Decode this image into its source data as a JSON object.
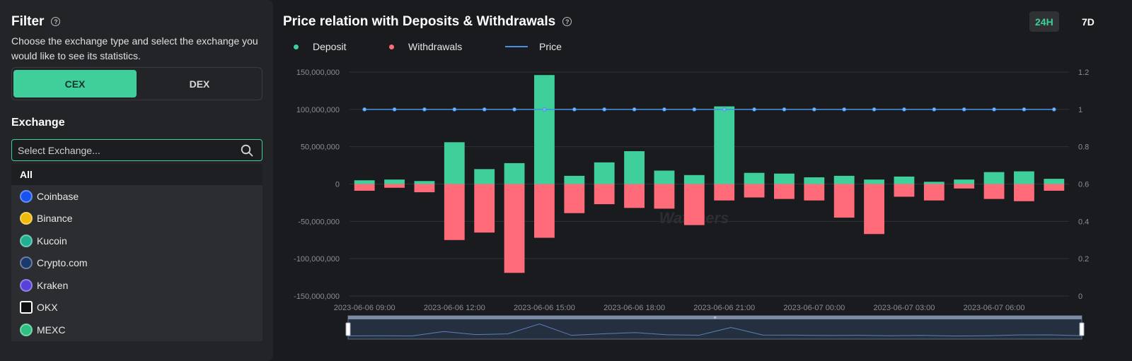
{
  "filter": {
    "title": "Filter",
    "description": "Choose the exchange type and select the exchange you would like to see its statistics.",
    "types": [
      {
        "label": "CEX",
        "active": true
      },
      {
        "label": "DEX",
        "active": false
      }
    ]
  },
  "exchange": {
    "title": "Exchange",
    "search_placeholder": "Select Exchange...",
    "all_label": "All",
    "items": [
      {
        "label": "Coinbase",
        "color": "#1652f0",
        "icon": "coinbase-logo"
      },
      {
        "label": "Binance",
        "color": "#f0b90b",
        "icon": "binance-logo"
      },
      {
        "label": "Kucoin",
        "color": "#23af91",
        "icon": "kucoin-logo"
      },
      {
        "label": "Crypto.com",
        "color": "#1a3a6e",
        "icon": "cryptocom-logo"
      },
      {
        "label": "Kraken",
        "color": "#5741d9",
        "icon": "kraken-logo"
      },
      {
        "label": "OKX",
        "color": "#ffffff",
        "icon": "okx-logo"
      },
      {
        "label": "MEXC",
        "color": "#2fc081",
        "icon": "mexc-logo"
      }
    ]
  },
  "chart": {
    "title": "Price relation with Deposits & Withdrawals",
    "range_buttons": [
      {
        "label": "24H",
        "active": true
      },
      {
        "label": "7D",
        "active": false
      }
    ],
    "watermark": "Watchers",
    "colors": {
      "deposit": "#3ecf9a",
      "withdrawals": "#ff6b78",
      "price": "#4a90e2",
      "grid": "#303236",
      "axis_text": "#8a8d93"
    }
  },
  "chart_data": {
    "type": "bar",
    "x": [
      "2023-06-06 09:00",
      "2023-06-06 10:00",
      "2023-06-06 11:00",
      "2023-06-06 12:00",
      "2023-06-06 13:00",
      "2023-06-06 14:00",
      "2023-06-06 15:00",
      "2023-06-06 16:00",
      "2023-06-06 17:00",
      "2023-06-06 18:00",
      "2023-06-06 19:00",
      "2023-06-06 20:00",
      "2023-06-06 21:00",
      "2023-06-06 22:00",
      "2023-06-06 23:00",
      "2023-06-07 00:00",
      "2023-06-07 01:00",
      "2023-06-07 02:00",
      "2023-06-07 03:00",
      "2023-06-07 04:00",
      "2023-06-07 05:00",
      "2023-06-07 06:00",
      "2023-06-07 07:00",
      "2023-06-07 08:00"
    ],
    "x_tick_labels": [
      "2023-06-06 09:00",
      "2023-06-06 12:00",
      "2023-06-06 15:00",
      "2023-06-06 18:00",
      "2023-06-06 21:00",
      "2023-06-07 00:00",
      "2023-06-07 03:00",
      "2023-06-07 06:00"
    ],
    "series": [
      {
        "name": "Deposit",
        "type": "bar",
        "values": [
          5000000,
          6000000,
          4000000,
          56000000,
          20000000,
          28000000,
          146000000,
          11000000,
          29000000,
          44000000,
          18000000,
          12000000,
          104000000,
          15000000,
          14000000,
          9000000,
          11000000,
          6000000,
          10000000,
          3000000,
          6000000,
          16000000,
          17000000,
          7000000
        ]
      },
      {
        "name": "Withdrawals",
        "type": "bar",
        "values": [
          -9000000,
          -5000000,
          -11000000,
          -75000000,
          -65000000,
          -119000000,
          -72000000,
          -39000000,
          -27000000,
          -32000000,
          -33000000,
          -55000000,
          -22000000,
          -18000000,
          -20000000,
          -22000000,
          -45000000,
          -67000000,
          -17000000,
          -22000000,
          -6000000,
          -20000000,
          -23000000,
          -9000000
        ]
      },
      {
        "name": "Price",
        "type": "line",
        "axis": "right",
        "values": [
          1,
          1,
          1,
          1,
          1,
          1,
          1,
          1,
          1,
          1,
          1,
          1,
          1,
          1,
          1,
          1,
          1,
          1,
          1,
          1,
          1,
          1,
          1,
          1
        ]
      }
    ],
    "y_left": {
      "min": -150000000,
      "max": 150000000,
      "ticks": [
        "150,000,000",
        "100,000,000",
        "50,000,000",
        "0",
        "-50,000,000",
        "-100,000,000",
        "-150,000,000"
      ]
    },
    "y_right": {
      "min": 0,
      "max": 1.2,
      "ticks": [
        "1.2",
        "1",
        "0.8",
        "0.6",
        "0.4",
        "0.2",
        "0"
      ]
    },
    "legend_position": "top-left",
    "grid": true
  }
}
